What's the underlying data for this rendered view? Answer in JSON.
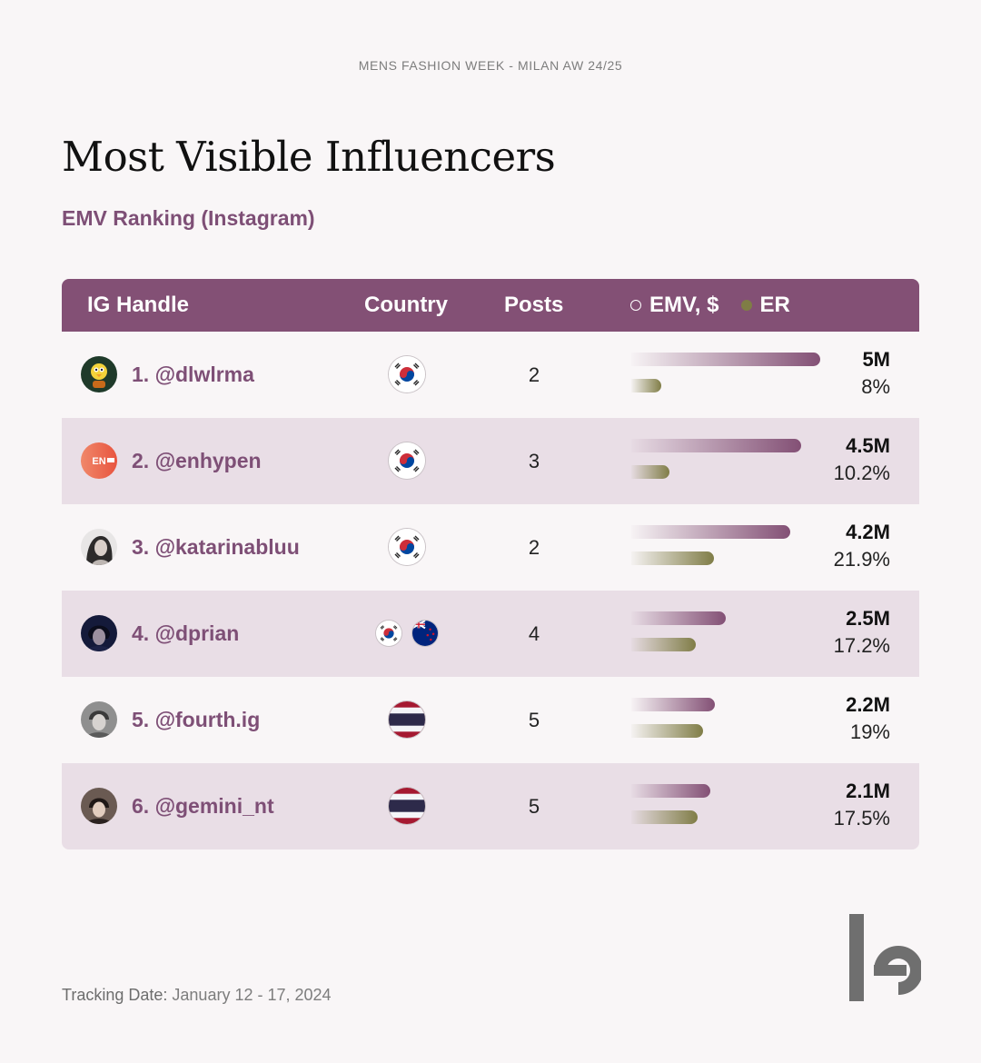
{
  "header": {
    "event": "MENS FASHION WEEK - MILAN AW 24/25",
    "title": "Most Visible Influencers",
    "subtitle": "EMV Ranking (Instagram)"
  },
  "table": {
    "columns": {
      "handle": "IG Handle",
      "country": "Country",
      "posts": "Posts",
      "emv": "EMV, $",
      "er": "ER"
    },
    "rows": [
      {
        "handle": "1. @dlwlrma",
        "countries": [
          "kr"
        ],
        "posts": "2",
        "emv": "5M",
        "er": "8%",
        "emv_value": 5.0,
        "er_value": 8.0
      },
      {
        "handle": "2. @enhypen",
        "countries": [
          "kr"
        ],
        "posts": "3",
        "emv": "4.5M",
        "er": "10.2%",
        "emv_value": 4.5,
        "er_value": 10.2
      },
      {
        "handle": "3. @katarinabluu",
        "countries": [
          "kr"
        ],
        "posts": "2",
        "emv": "4.2M",
        "er": "21.9%",
        "emv_value": 4.2,
        "er_value": 21.9
      },
      {
        "handle": "4. @dprian",
        "countries": [
          "kr",
          "nz"
        ],
        "posts": "4",
        "emv": "2.5M",
        "er": "17.2%",
        "emv_value": 2.5,
        "er_value": 17.2
      },
      {
        "handle": "5. @fourth.ig",
        "countries": [
          "th"
        ],
        "posts": "5",
        "emv": "2.2M",
        "er": "19%",
        "emv_value": 2.2,
        "er_value": 19.0
      },
      {
        "handle": "6. @gemini_nt",
        "countries": [
          "th"
        ],
        "posts": "5",
        "emv": "2.1M",
        "er": "17.5%",
        "emv_value": 2.1,
        "er_value": 17.5
      }
    ],
    "avatar_icons": [
      "cartoon-bird-avatar-icon",
      "enhypen-logo-avatar-icon",
      "portrait-avatar-icon",
      "portrait-avatar-icon",
      "portrait-avatar-icon",
      "portrait-avatar-icon"
    ]
  },
  "footer": {
    "tracking_label": "Tracking Date:",
    "tracking_dates": "January 12 - 17, 2024"
  },
  "colors": {
    "accent": "#835075",
    "er_bar": "#807d47",
    "alt_row": "#e9dee6",
    "background": "#f9f6f7"
  }
}
